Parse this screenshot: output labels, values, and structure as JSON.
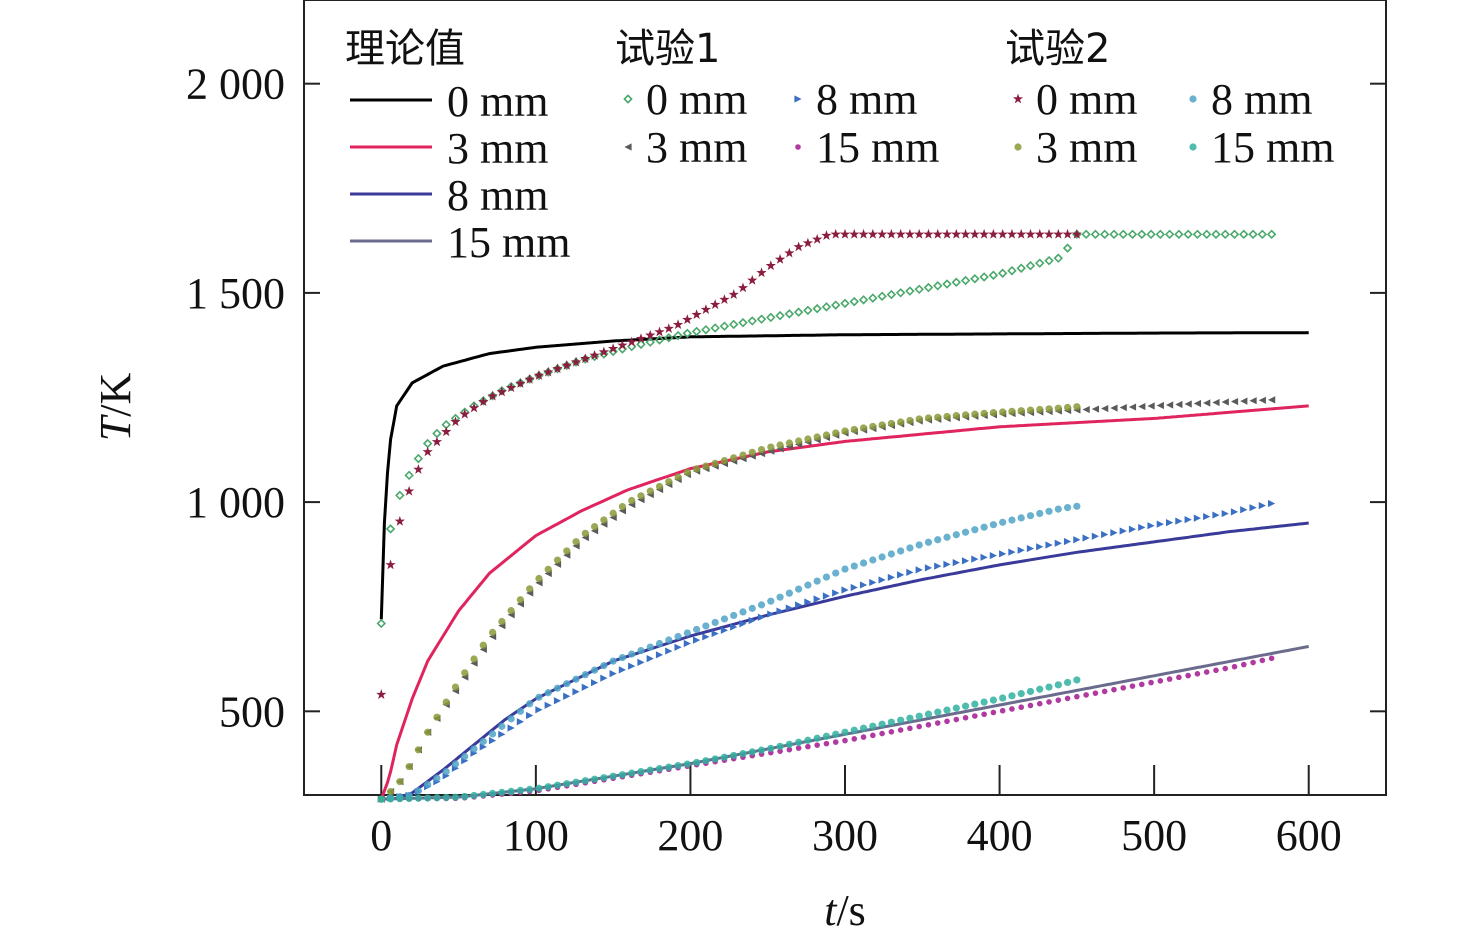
{
  "chart_data": {
    "type": "line",
    "xlabel_italic": "t",
    "xlabel_unit": "/s",
    "ylabel_italic": "T",
    "ylabel_unit": "/K",
    "xlim": [
      -50,
      650
    ],
    "ylim": [
      300,
      2200
    ],
    "xticks": [
      0,
      100,
      200,
      300,
      400,
      500,
      600
    ],
    "xtick_labels": [
      "0",
      "100",
      "200",
      "300",
      "400",
      "500",
      "600"
    ],
    "yticks": [
      500,
      1000,
      1500,
      2000
    ],
    "ytick_labels": [
      "500",
      "1 000",
      "1 500",
      "2 000"
    ],
    "grid": false,
    "legend": {
      "placement": "top",
      "groups": [
        {
          "title": "理论值",
          "entries": [
            "0 mm",
            "3 mm",
            "8 mm",
            "15 mm"
          ]
        },
        {
          "title": "试验1",
          "entries": [
            "0 mm",
            "8 mm",
            "3 mm",
            "15 mm"
          ]
        },
        {
          "title": "试验2",
          "entries": [
            "0 mm",
            "8 mm",
            "3 mm",
            "15 mm"
          ]
        }
      ]
    },
    "series": [
      {
        "group": "理论值",
        "name": "0 mm",
        "color": "#000000",
        "marker": "line",
        "x": [
          0,
          2,
          5,
          10,
          20,
          40,
          70,
          100,
          150,
          200,
          300,
          400,
          500,
          600
        ],
        "y": [
          720,
          950,
          1130,
          1230,
          1285,
          1325,
          1355,
          1370,
          1385,
          1395,
          1400,
          1402,
          1404,
          1405
        ]
      },
      {
        "group": "理论值",
        "name": "3 mm",
        "color": "#e0245e",
        "marker": "line",
        "x": [
          0,
          5,
          10,
          20,
          30,
          50,
          70,
          100,
          130,
          160,
          200,
          250,
          300,
          400,
          500,
          600
        ],
        "y": [
          290,
          340,
          420,
          530,
          620,
          740,
          830,
          920,
          980,
          1030,
          1080,
          1120,
          1145,
          1180,
          1200,
          1230
        ]
      },
      {
        "group": "理论值",
        "name": "8 mm",
        "color": "#3a3a9a",
        "marker": "line",
        "x": [
          0,
          10,
          20,
          40,
          60,
          80,
          100,
          150,
          200,
          250,
          300,
          350,
          400,
          450,
          500,
          550,
          600
        ],
        "y": [
          290,
          292,
          305,
          360,
          420,
          480,
          530,
          620,
          680,
          730,
          775,
          815,
          850,
          880,
          905,
          930,
          950
        ]
      },
      {
        "group": "理论值",
        "name": "15 mm",
        "color": "#6b6b8e",
        "marker": "line",
        "x": [
          0,
          50,
          100,
          150,
          200,
          250,
          300,
          350,
          400,
          450,
          500,
          550,
          600
        ],
        "y": [
          290,
          295,
          315,
          345,
          375,
          410,
          445,
          480,
          515,
          550,
          585,
          620,
          655
        ]
      },
      {
        "group": "试验1",
        "name": "0 mm",
        "color": "#4aa86b",
        "marker": "diamond",
        "x": [
          0,
          5,
          10,
          20,
          30,
          40,
          60,
          80,
          100,
          130,
          160,
          200,
          250,
          300,
          350,
          400,
          440,
          450,
          500,
          550,
          580
        ],
        "y": [
          710,
          920,
          1000,
          1080,
          1140,
          1180,
          1230,
          1270,
          1300,
          1340,
          1370,
          1405,
          1440,
          1475,
          1510,
          1545,
          1585,
          1640,
          1640,
          1640,
          1640
        ]
      },
      {
        "group": "试验1",
        "name": "8 mm",
        "color": "#3a6fc4",
        "marker": "triangle-right",
        "x": [
          0,
          20,
          40,
          60,
          80,
          100,
          150,
          200,
          250,
          300,
          350,
          400,
          450,
          500,
          550,
          580
        ],
        "y": [
          290,
          300,
          340,
          400,
          450,
          500,
          590,
          665,
          730,
          790,
          840,
          875,
          910,
          945,
          975,
          1000
        ]
      },
      {
        "group": "试验1",
        "name": "3 mm",
        "color": "#5a5a5a",
        "marker": "triangle-left",
        "x": [
          0,
          10,
          20,
          30,
          50,
          70,
          100,
          130,
          160,
          200,
          250,
          300,
          350,
          400,
          450,
          500,
          550,
          580
        ],
        "y": [
          290,
          320,
          380,
          450,
          560,
          670,
          800,
          910,
          990,
          1070,
          1120,
          1165,
          1195,
          1210,
          1220,
          1230,
          1240,
          1245
        ]
      },
      {
        "group": "试验1",
        "name": "15 mm",
        "color": "#b03aa0",
        "marker": "dot",
        "x": [
          0,
          50,
          100,
          150,
          200,
          250,
          300,
          350,
          400,
          450,
          500,
          550,
          580
        ],
        "y": [
          290,
          292,
          310,
          340,
          370,
          400,
          430,
          465,
          500,
          535,
          570,
          605,
          630
        ]
      },
      {
        "group": "试验2",
        "name": "0 mm",
        "color": "#8b1e3f",
        "marker": "star",
        "x": [
          0,
          5,
          10,
          20,
          30,
          50,
          70,
          100,
          130,
          160,
          190,
          210,
          230,
          250,
          270,
          290,
          320,
          350,
          400,
          450
        ],
        "y": [
          540,
          830,
          930,
          1050,
          1120,
          1200,
          1250,
          1300,
          1340,
          1380,
          1420,
          1460,
          1500,
          1560,
          1610,
          1640,
          1640,
          1640,
          1640,
          1640
        ]
      },
      {
        "group": "试验2",
        "name": "8 mm",
        "color": "#4fa3c7",
        "marker": "circle",
        "x": [
          0,
          20,
          40,
          60,
          80,
          100,
          150,
          200,
          250,
          300,
          350,
          400,
          440,
          450
        ],
        "y": [
          290,
          300,
          350,
          410,
          470,
          530,
          620,
          690,
          760,
          840,
          900,
          950,
          985,
          990
        ]
      },
      {
        "group": "试验2",
        "name": "3 mm",
        "color": "#8a9a3a",
        "marker": "circle",
        "x": [
          0,
          10,
          20,
          30,
          50,
          70,
          100,
          130,
          160,
          200,
          250,
          300,
          350,
          400,
          440,
          450
        ],
        "y": [
          290,
          320,
          380,
          450,
          570,
          680,
          810,
          920,
          1000,
          1075,
          1130,
          1170,
          1200,
          1215,
          1225,
          1228
        ]
      },
      {
        "group": "试验2",
        "name": "15 mm",
        "color": "#2fb0a0",
        "marker": "circle",
        "x": [
          0,
          50,
          100,
          150,
          200,
          250,
          300,
          350,
          400,
          440,
          450
        ],
        "y": [
          290,
          295,
          315,
          345,
          375,
          410,
          450,
          490,
          530,
          565,
          575
        ]
      }
    ]
  }
}
